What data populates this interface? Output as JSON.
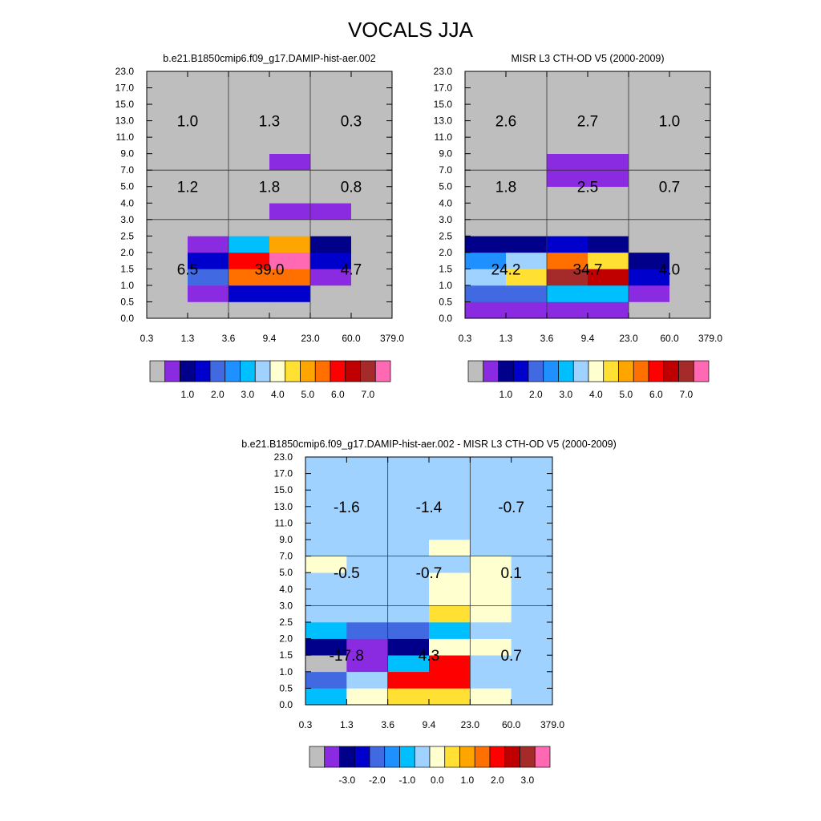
{
  "figure_title": "VOCALS JJA",
  "chart_data": [
    {
      "type": "heatmap",
      "title": "b.e21.B1850cmip6.f09_g17.DAMIP-hist-aer.002",
      "x_ticks": [
        "0.3",
        "1.3",
        "3.6",
        "9.4",
        "23.0",
        "60.0",
        "379.0"
      ],
      "y_ticks": [
        "0.0",
        "0.5",
        "1.0",
        "1.5",
        "2.0",
        "2.5",
        "3.0",
        "4.0",
        "5.0",
        "7.0",
        "9.0",
        "11.0",
        "13.0",
        "15.0",
        "17.0",
        "23.0"
      ],
      "cells": [
        [
          0,
          0,
          0,
          0,
          0,
          0
        ],
        [
          0,
          1,
          3,
          3,
          0,
          0
        ],
        [
          0,
          4,
          11,
          11,
          1,
          0
        ],
        [
          0,
          3,
          12,
          15,
          3,
          0
        ],
        [
          0,
          1,
          6,
          10,
          2,
          0
        ],
        [
          0,
          0,
          0,
          0,
          0,
          0
        ],
        [
          0,
          0,
          0,
          1,
          1,
          0
        ],
        [
          0,
          0,
          0,
          0,
          0,
          0
        ],
        [
          0,
          0,
          0,
          0,
          0,
          0
        ],
        [
          0,
          0,
          0,
          1,
          0,
          0
        ],
        [
          0,
          0,
          0,
          0,
          0,
          0
        ],
        [
          0,
          0,
          0,
          0,
          0,
          0
        ],
        [
          0,
          0,
          0,
          0,
          0,
          0
        ],
        [
          0,
          0,
          0,
          0,
          0,
          0
        ],
        [
          0,
          0,
          0,
          0,
          0,
          0
        ]
      ],
      "region_labels": [
        {
          "value": "6.5",
          "col": 1,
          "row": 3
        },
        {
          "value": "39.0",
          "col": 3,
          "row": 3
        },
        {
          "value": "4.7",
          "col": 5,
          "row": 3
        },
        {
          "value": "1.2",
          "col": 1,
          "row": 8
        },
        {
          "value": "1.8",
          "col": 3,
          "row": 8
        },
        {
          "value": "0.8",
          "col": 5,
          "row": 8
        },
        {
          "value": "1.0",
          "col": 1,
          "row": 12
        },
        {
          "value": "1.3",
          "col": 3,
          "row": 12
        },
        {
          "value": "0.3",
          "col": 5,
          "row": 12
        }
      ],
      "colorbar_labels": [
        "1.0",
        "2.0",
        "3.0",
        "4.0",
        "5.0",
        "6.0",
        "7.0"
      ],
      "colorbar_colors": [
        "#bebebe",
        "#8a2be2",
        "#00008b",
        "#0000cd",
        "#4169e1",
        "#1e90ff",
        "#00bfff",
        "#a0d2ff",
        "#ffffd0",
        "#ffe033",
        "#ffa500",
        "#ff7000",
        "#ff0000",
        "#c00000",
        "#a52a2a",
        "#ff69b4"
      ]
    },
    {
      "type": "heatmap",
      "title": "MISR L3 CTH-OD V5 (2000-2009)",
      "x_ticks": [
        "0.3",
        "1.3",
        "3.6",
        "9.4",
        "23.0",
        "60.0",
        "379.0"
      ],
      "y_ticks": [
        "0.0",
        "0.5",
        "1.0",
        "1.5",
        "2.0",
        "2.5",
        "3.0",
        "4.0",
        "5.0",
        "7.0",
        "9.0",
        "11.0",
        "13.0",
        "15.0",
        "17.0",
        "23.0"
      ],
      "cells": [
        [
          1,
          1,
          1,
          1,
          0,
          0
        ],
        [
          4,
          4,
          6,
          6,
          1,
          0
        ],
        [
          7,
          9,
          14,
          13,
          3,
          0
        ],
        [
          5,
          7,
          11,
          9,
          2,
          0
        ],
        [
          2,
          2,
          3,
          2,
          0,
          0
        ],
        [
          0,
          0,
          0,
          0,
          0,
          0
        ],
        [
          0,
          0,
          0,
          0,
          0,
          0
        ],
        [
          0,
          0,
          0,
          0,
          0,
          0
        ],
        [
          0,
          0,
          1,
          1,
          0,
          0
        ],
        [
          0,
          0,
          1,
          1,
          0,
          0
        ],
        [
          0,
          0,
          0,
          0,
          0,
          0
        ],
        [
          0,
          0,
          0,
          0,
          0,
          0
        ],
        [
          0,
          0,
          0,
          0,
          0,
          0
        ],
        [
          0,
          0,
          0,
          0,
          0,
          0
        ],
        [
          0,
          0,
          0,
          0,
          0,
          0
        ]
      ],
      "region_labels": [
        {
          "value": "24.2",
          "col": 1,
          "row": 3
        },
        {
          "value": "34.7",
          "col": 3,
          "row": 3
        },
        {
          "value": "4.0",
          "col": 5,
          "row": 3
        },
        {
          "value": "1.8",
          "col": 1,
          "row": 8
        },
        {
          "value": "2.5",
          "col": 3,
          "row": 8
        },
        {
          "value": "0.7",
          "col": 5,
          "row": 8
        },
        {
          "value": "2.6",
          "col": 1,
          "row": 12
        },
        {
          "value": "2.7",
          "col": 3,
          "row": 12
        },
        {
          "value": "1.0",
          "col": 5,
          "row": 12
        }
      ],
      "colorbar_labels": [
        "1.0",
        "2.0",
        "3.0",
        "4.0",
        "5.0",
        "6.0",
        "7.0"
      ],
      "colorbar_colors": [
        "#bebebe",
        "#8a2be2",
        "#00008b",
        "#0000cd",
        "#4169e1",
        "#1e90ff",
        "#00bfff",
        "#a0d2ff",
        "#ffffd0",
        "#ffe033",
        "#ffa500",
        "#ff7000",
        "#ff0000",
        "#c00000",
        "#a52a2a",
        "#ff69b4"
      ]
    },
    {
      "type": "heatmap",
      "title": "b.e21.B1850cmip6.f09_g17.DAMIP-hist-aer.002 - MISR L3 CTH-OD V5 (2000-2009)",
      "x_ticks": [
        "0.3",
        "1.3",
        "3.6",
        "9.4",
        "23.0",
        "60.0",
        "379.0"
      ],
      "y_ticks": [
        "0.0",
        "0.5",
        "1.0",
        "1.5",
        "2.0",
        "2.5",
        "3.0",
        "4.0",
        "5.0",
        "7.0",
        "9.0",
        "11.0",
        "13.0",
        "15.0",
        "17.0",
        "23.0"
      ],
      "cells": [
        [
          6,
          8,
          9,
          9,
          8,
          7
        ],
        [
          4,
          7,
          12,
          12,
          7,
          7
        ],
        [
          0,
          1,
          6,
          12,
          7,
          7
        ],
        [
          2,
          1,
          2,
          8,
          8,
          7
        ],
        [
          6,
          4,
          4,
          6,
          7,
          7
        ],
        [
          7,
          7,
          7,
          9,
          8,
          7
        ],
        [
          7,
          7,
          7,
          8,
          8,
          7
        ],
        [
          7,
          7,
          7,
          8,
          8,
          7
        ],
        [
          8,
          7,
          7,
          7,
          8,
          7
        ],
        [
          7,
          7,
          7,
          8,
          7,
          7
        ],
        [
          7,
          7,
          7,
          7,
          7,
          7
        ],
        [
          7,
          7,
          7,
          7,
          7,
          7
        ],
        [
          7,
          7,
          7,
          7,
          7,
          7
        ],
        [
          7,
          7,
          7,
          7,
          7,
          7
        ],
        [
          7,
          7,
          7,
          7,
          7,
          7
        ]
      ],
      "region_labels": [
        {
          "value": "-17.8",
          "col": 1,
          "row": 3
        },
        {
          "value": "4.3",
          "col": 3,
          "row": 3
        },
        {
          "value": "0.7",
          "col": 5,
          "row": 3
        },
        {
          "value": "-0.5",
          "col": 1,
          "row": 8
        },
        {
          "value": "-0.7",
          "col": 3,
          "row": 8
        },
        {
          "value": "0.1",
          "col": 5,
          "row": 8
        },
        {
          "value": "-1.6",
          "col": 1,
          "row": 12
        },
        {
          "value": "-1.4",
          "col": 3,
          "row": 12
        },
        {
          "value": "-0.7",
          "col": 5,
          "row": 12
        }
      ],
      "colorbar_labels": [
        "-3.0",
        "-2.0",
        "-1.0",
        "0.0",
        "1.0",
        "2.0",
        "3.0"
      ],
      "colorbar_colors": [
        "#bebebe",
        "#8a2be2",
        "#00008b",
        "#0000cd",
        "#4169e1",
        "#1e90ff",
        "#00bfff",
        "#a0d2ff",
        "#ffffd0",
        "#ffe033",
        "#ffa500",
        "#ff7000",
        "#ff0000",
        "#c00000",
        "#a52a2a",
        "#ff69b4"
      ]
    }
  ]
}
